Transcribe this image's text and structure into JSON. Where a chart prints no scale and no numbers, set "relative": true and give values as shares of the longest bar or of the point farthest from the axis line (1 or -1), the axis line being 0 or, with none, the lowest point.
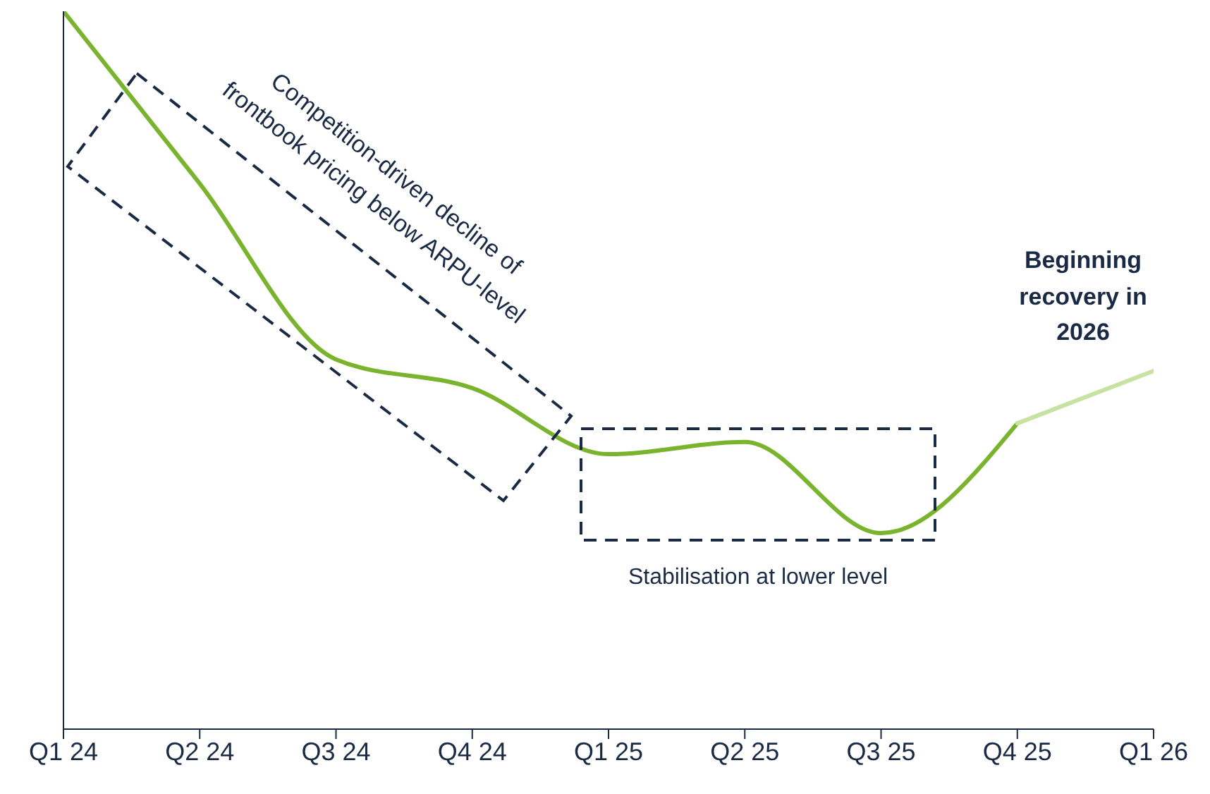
{
  "chart_data": {
    "type": "line",
    "relative": true,
    "categories": [
      "Q1 24",
      "Q2 24",
      "Q3 24",
      "Q4 24",
      "Q1 25",
      "Q2 25",
      "Q3 25",
      "Q4 25",
      "Q1 26"
    ],
    "series": [
      {
        "color": "#7ab32e",
        "values": [
          1.0,
          0.76,
          0.515,
          0.475,
          0.383,
          0.4,
          0.273,
          0.426,
          null
        ]
      },
      {
        "color": "#c8e2a4",
        "values": [
          null,
          null,
          null,
          null,
          null,
          null,
          null,
          0.426,
          0.499
        ]
      }
    ],
    "annotations": [
      "Competition-driven decline of frontbook pricing below ARPU-level",
      "Stabilisation at lower level",
      "Beginning recovery in 2026"
    ],
    "marker": "none",
    "line_style": "solid",
    "grid": false,
    "legend": false
  }
}
